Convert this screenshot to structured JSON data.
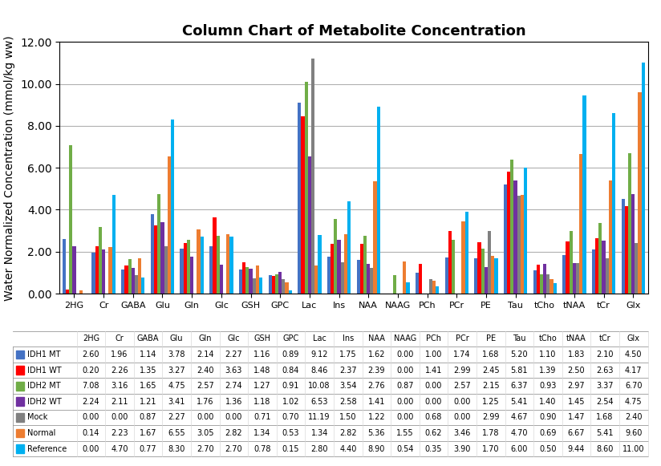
{
  "chart_data": {
    "type": "bar",
    "title": "Column Chart of Metabolite Concentration",
    "ylabel": "Water Normalized Concentration (mmol/kg ww)",
    "categories": [
      "2HG",
      "Cr",
      "GABA",
      "Glu",
      "Gln",
      "Glc",
      "GSH",
      "GPC",
      "Lac",
      "Ins",
      "NAA",
      "NAAG",
      "PCh",
      "PCr",
      "PE",
      "Tau",
      "tCho",
      "tNAA",
      "tCr",
      "Glx"
    ],
    "series": [
      {
        "name": "IDH1 MT",
        "color": "#4472C4",
        "values": [
          2.6,
          1.96,
          1.14,
          3.78,
          2.14,
          2.27,
          1.16,
          0.89,
          9.12,
          1.75,
          1.62,
          0.0,
          1.0,
          1.74,
          1.68,
          5.2,
          1.1,
          1.83,
          2.1,
          4.5
        ],
        "value_labels": [
          "2.60",
          "1.96",
          "1.14",
          "3.78",
          "2.14",
          "2.27",
          "1.16",
          "0.89",
          "9.12",
          "1.75",
          "1.62",
          "0.00",
          "1.00",
          "1.74",
          "1.68",
          "5.20",
          "1.10",
          "1.83",
          "2.10",
          "4.50"
        ]
      },
      {
        "name": "IDH1 WT",
        "color": "#FF0000",
        "values": [
          0.2,
          2.26,
          1.35,
          3.27,
          2.4,
          3.63,
          1.48,
          0.84,
          8.46,
          2.37,
          2.39,
          0.0,
          1.41,
          2.99,
          2.45,
          5.81,
          1.39,
          2.5,
          2.63,
          4.17
        ],
        "value_labels": [
          "0.20",
          "2.26",
          "1.35",
          "3.27",
          "2.40",
          "3.63",
          "1.48",
          "0.84",
          "8.46",
          "2.37",
          "2.39",
          "0.00",
          "1.41",
          "2.99",
          "2.45",
          "5.81",
          "1.39",
          "2.50",
          "2.63",
          "4.17"
        ]
      },
      {
        "name": "IDH2 MT",
        "color": "#70AD47",
        "values": [
          7.08,
          3.16,
          1.65,
          4.75,
          2.57,
          2.74,
          1.27,
          0.91,
          10.08,
          3.54,
          2.76,
          0.87,
          0.0,
          2.57,
          2.15,
          6.37,
          0.93,
          2.97,
          3.37,
          6.7
        ],
        "value_labels": [
          "7.08",
          "3.16",
          "1.65",
          "4.75",
          "2.57",
          "2.74",
          "1.27",
          "0.91",
          "10.08",
          "3.54",
          "2.76",
          "0.87",
          "0.00",
          "2.57",
          "2.15",
          "6.37",
          "0.93",
          "2.97",
          "3.37",
          "6.70"
        ]
      },
      {
        "name": "IDH2 WT",
        "color": "#7030A0",
        "values": [
          2.24,
          2.11,
          1.21,
          3.41,
          1.76,
          1.36,
          1.18,
          1.02,
          6.53,
          2.58,
          1.41,
          0.0,
          0.0,
          0.0,
          1.25,
          5.41,
          1.4,
          1.45,
          2.54,
          4.75
        ],
        "value_labels": [
          "2.24",
          "2.11",
          "1.21",
          "3.41",
          "1.76",
          "1.36",
          "1.18",
          "1.02",
          "6.53",
          "2.58",
          "1.41",
          "0.00",
          "0.00",
          "0.00",
          "1.25",
          "5.41",
          "1.40",
          "1.45",
          "2.54",
          "4.75"
        ]
      },
      {
        "name": "Mock",
        "color": "#808080",
        "values": [
          0.0,
          0.0,
          0.87,
          2.27,
          0.0,
          0.0,
          0.71,
          0.7,
          11.19,
          1.5,
          1.22,
          0.0,
          0.68,
          0.0,
          2.99,
          4.67,
          0.9,
          1.47,
          1.68,
          2.4
        ],
        "value_labels": [
          "0.00",
          "0.00",
          "0.87",
          "2.27",
          "0.00",
          "0.00",
          "0.71",
          "0.70",
          "11.19",
          "1.50",
          "1.22",
          "0.00",
          "0.68",
          "0.00",
          "2.99",
          "4.67",
          "0.90",
          "1.47",
          "1.68",
          "2.40"
        ]
      },
      {
        "name": "Normal",
        "color": "#ED7D31",
        "values": [
          0.14,
          2.23,
          1.67,
          6.55,
          3.05,
          2.82,
          1.34,
          0.53,
          1.34,
          2.82,
          5.36,
          1.55,
          0.62,
          3.46,
          1.78,
          4.7,
          0.69,
          6.67,
          5.41,
          9.6
        ],
        "value_labels": [
          "0.14",
          "2.23",
          "1.67",
          "6.55",
          "3.05",
          "2.82",
          "1.34",
          "0.53",
          "1.34",
          "2.82",
          "5.36",
          "1.55",
          "0.62",
          "3.46",
          "1.78",
          "4.70",
          "0.69",
          "6.67",
          "5.41",
          "9.60"
        ]
      },
      {
        "name": "Reference",
        "color": "#00B0F0",
        "values": [
          0.0,
          4.7,
          0.77,
          8.3,
          2.7,
          2.7,
          0.78,
          0.15,
          2.8,
          4.4,
          8.9,
          0.54,
          0.35,
          3.9,
          1.7,
          6.0,
          0.5,
          9.44,
          8.6,
          11.0
        ],
        "value_labels": [
          "0.00",
          "4.70",
          "0.77",
          "8.30",
          "2.70",
          "2.70",
          "0.78",
          "0.15",
          "2.80",
          "4.40",
          "8.90",
          "0.54",
          "0.35",
          "3.90",
          "1.70",
          "6.00",
          "0.50",
          "9.44",
          "8.60",
          "11.00"
        ]
      }
    ],
    "ylim": [
      0,
      12.0
    ],
    "yticks": [
      {
        "value": 0,
        "label": "0.00"
      },
      {
        "value": 2,
        "label": "2.00"
      },
      {
        "value": 4,
        "label": "4.00"
      },
      {
        "value": 6,
        "label": "6.00"
      },
      {
        "value": 8,
        "label": "8.00"
      },
      {
        "value": 10,
        "label": "10.00"
      },
      {
        "value": 12,
        "label": "12.00"
      }
    ],
    "grid": true
  }
}
